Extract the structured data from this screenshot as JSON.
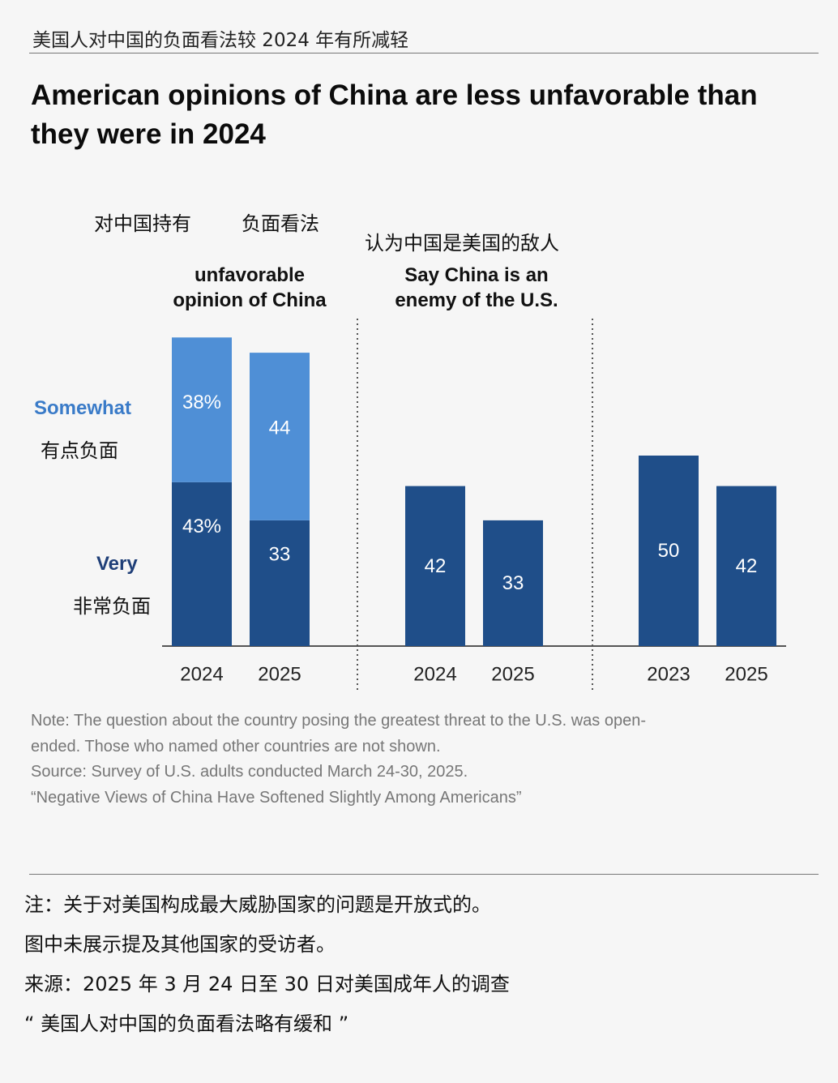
{
  "header": {
    "zh_title": "美国人对中国的负面看法较 2024 年有所减轻",
    "headline": "American opinions of China are less unfavorable than they were in 2024"
  },
  "panels": {
    "left_zh_a": "对中国持有",
    "left_zh_b": "负面看法",
    "left_en": "unfavorable opinion of China",
    "right_zh": "认为中国是美国的敌人",
    "right_en": "Say China is an enemy of the U.S."
  },
  "legend": {
    "somewhat_en": "Somewhat",
    "somewhat_zh": "有点负面",
    "very_en": "Very",
    "very_zh": "非常负面"
  },
  "colors": {
    "very": "#1f4e89",
    "somewhat": "#4f8fd6",
    "somewhat_label": "#3a7bc8",
    "very_label": "#1f3f78"
  },
  "chart_data": [
    {
      "type": "bar",
      "stacked": true,
      "title": "unfavorable opinion of China",
      "categories": [
        "2024",
        "2025"
      ],
      "series": [
        {
          "name": "Very",
          "values": [
            43,
            33
          ],
          "labels": [
            "43%",
            "33"
          ]
        },
        {
          "name": "Somewhat",
          "values": [
            38,
            44
          ],
          "labels": [
            "38%",
            "44"
          ]
        }
      ]
    },
    {
      "type": "bar",
      "title": "Say China is an enemy of the U.S.",
      "categories": [
        "2024",
        "2025"
      ],
      "values": [
        42,
        33
      ]
    },
    {
      "type": "bar",
      "categories": [
        "2023",
        "2025"
      ],
      "values": [
        50,
        42
      ]
    }
  ],
  "notes": {
    "en": [
      "Note: The question about the country posing the greatest threat to the U.S. was open-",
      "ended. Those who named other countries are not shown.",
      "Source: Survey of U.S. adults conducted March 24-30, 2025.",
      "“Negative Views of China Have Softened Slightly Among Americans”"
    ],
    "zh": [
      "注：关于对美国构成最大威胁国家的问题是开放式的。",
      "图中未展示提及其他国家的受访者。",
      "来源：2025 年 3 月 24 日至 30 日对美国成年人的调查",
      "“ 美国人对中国的负面看法略有缓和 ”"
    ]
  }
}
